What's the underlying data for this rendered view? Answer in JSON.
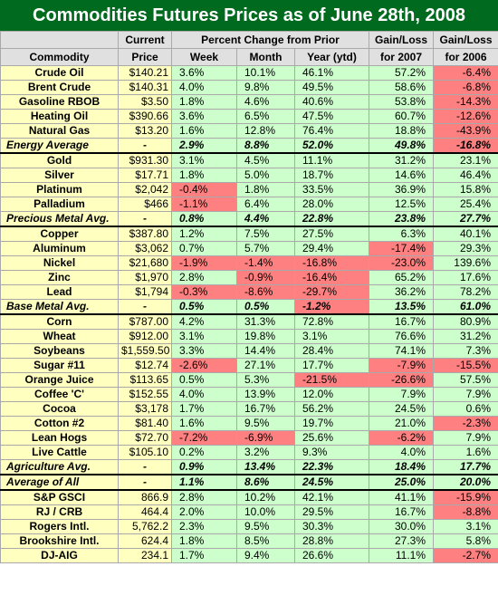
{
  "title": "Commodities Futures Prices as of June 28th, 2008",
  "colors": {
    "title_bg": "#006b1f",
    "name_bg": "#ffffc0",
    "positive_bg": "#ccffcc",
    "negative_bg": "#ff8080",
    "header_bg": "#e0e0e0"
  },
  "header": {
    "row1": [
      "",
      "Current",
      "Percent Change from Prior",
      "Gain/Loss",
      "Gain/Loss"
    ],
    "row2": [
      "Commodity",
      "Price",
      "Week",
      "Month",
      "Year (ytd)",
      "for 2007",
      "for 2006"
    ]
  },
  "chart_data": {
    "type": "table",
    "title": "Commodities Futures Prices as of June 28th, 2008",
    "columns": [
      "Commodity",
      "Current Price",
      "Week",
      "Month",
      "Year (ytd)",
      "Gain/Loss for 2007",
      "Gain/Loss for 2006"
    ],
    "rows": [
      {
        "name": "Crude Oil",
        "price": "$140.21",
        "values": [
          "3.6%",
          "10.1%",
          "46.1%",
          "57.2%",
          "-6.4%"
        ]
      },
      {
        "name": "Brent Crude",
        "price": "$140.31",
        "values": [
          "4.0%",
          "9.8%",
          "49.5%",
          "58.6%",
          "-6.8%"
        ]
      },
      {
        "name": "Gasoline RBOB",
        "price": "$3.50",
        "values": [
          "1.8%",
          "4.6%",
          "40.6%",
          "53.8%",
          "-14.3%"
        ]
      },
      {
        "name": "Heating Oil",
        "price": "$390.66",
        "values": [
          "3.6%",
          "6.5%",
          "47.5%",
          "60.7%",
          "-12.6%"
        ]
      },
      {
        "name": "Natural Gas",
        "price": "$13.20",
        "values": [
          "1.6%",
          "12.8%",
          "76.4%",
          "18.8%",
          "-43.9%"
        ]
      },
      {
        "name": "Energy Average",
        "price": "-",
        "values": [
          "2.9%",
          "8.8%",
          "52.0%",
          "49.8%",
          "-16.8%"
        ],
        "avg": true
      },
      {
        "name": "Gold",
        "price": "$931.30",
        "values": [
          "3.1%",
          "4.5%",
          "11.1%",
          "31.2%",
          "23.1%"
        ]
      },
      {
        "name": "Silver",
        "price": "$17.71",
        "values": [
          "1.8%",
          "5.0%",
          "18.7%",
          "14.6%",
          "46.4%"
        ]
      },
      {
        "name": "Platinum",
        "price": "$2,042",
        "values": [
          "-0.4%",
          "1.8%",
          "33.5%",
          "36.9%",
          "15.8%"
        ]
      },
      {
        "name": "Palladium",
        "price": "$466",
        "values": [
          "-1.1%",
          "6.4%",
          "28.0%",
          "12.5%",
          "25.4%"
        ]
      },
      {
        "name": "Precious Metal Avg.",
        "price": "-",
        "values": [
          "0.8%",
          "4.4%",
          "22.8%",
          "23.8%",
          "27.7%"
        ],
        "avg": true
      },
      {
        "name": "Copper",
        "price": "$387.80",
        "values": [
          "1.2%",
          "7.5%",
          "27.5%",
          "6.3%",
          "40.1%"
        ]
      },
      {
        "name": "Aluminum",
        "price": "$3,062",
        "values": [
          "0.7%",
          "5.7%",
          "29.4%",
          "-17.4%",
          "29.3%"
        ]
      },
      {
        "name": "Nickel",
        "price": "$21,680",
        "values": [
          "-1.9%",
          "-1.4%",
          "-16.8%",
          "-23.0%",
          "139.6%"
        ]
      },
      {
        "name": "Zinc",
        "price": "$1,970",
        "values": [
          "2.8%",
          "-0.9%",
          "-16.4%",
          "65.2%",
          "17.6%"
        ]
      },
      {
        "name": "Lead",
        "price": "$1,794",
        "values": [
          "-0.3%",
          "-8.6%",
          "-29.7%",
          "36.2%",
          "78.2%"
        ]
      },
      {
        "name": "Base Metal Avg.",
        "price": "-",
        "values": [
          "0.5%",
          "0.5%",
          "-1.2%",
          "13.5%",
          "61.0%"
        ],
        "avg": true
      },
      {
        "name": "Corn",
        "price": "$787.00",
        "values": [
          "4.2%",
          "31.3%",
          "72.8%",
          "16.7%",
          "80.9%"
        ]
      },
      {
        "name": "Wheat",
        "price": "$912.00",
        "values": [
          "3.1%",
          "19.8%",
          "3.1%",
          "76.6%",
          "31.2%"
        ]
      },
      {
        "name": "Soybeans",
        "price": "$1,559.50",
        "values": [
          "3.3%",
          "14.4%",
          "28.4%",
          "74.1%",
          "7.3%"
        ]
      },
      {
        "name": "Sugar #11",
        "price": "$12.74",
        "values": [
          "-2.6%",
          "27.1%",
          "17.7%",
          "-7.9%",
          "-15.5%"
        ]
      },
      {
        "name": "Orange Juice",
        "price": "$113.65",
        "values": [
          "0.5%",
          "5.3%",
          "-21.5%",
          "-26.6%",
          "57.5%"
        ]
      },
      {
        "name": "Coffee 'C'",
        "price": "$152.55",
        "values": [
          "4.0%",
          "13.9%",
          "12.0%",
          "7.9%",
          "7.9%"
        ]
      },
      {
        "name": "Cocoa",
        "price": "$3,178",
        "values": [
          "1.7%",
          "16.7%",
          "56.2%",
          "24.5%",
          "0.6%"
        ]
      },
      {
        "name": "Cotton #2",
        "price": "$81.40",
        "values": [
          "1.6%",
          "9.5%",
          "19.7%",
          "21.0%",
          "-2.3%"
        ]
      },
      {
        "name": "Lean Hogs",
        "price": "$72.70",
        "values": [
          "-7.2%",
          "-6.9%",
          "25.6%",
          "-6.2%",
          "7.9%"
        ]
      },
      {
        "name": "Live Cattle",
        "price": "$105.10",
        "values": [
          "0.2%",
          "3.2%",
          "9.3%",
          "4.0%",
          "1.6%"
        ]
      },
      {
        "name": "Agriculture Avg.",
        "price": "-",
        "values": [
          "0.9%",
          "13.4%",
          "22.3%",
          "18.4%",
          "17.7%"
        ],
        "avg": true
      },
      {
        "name": "Average of All",
        "price": "-",
        "values": [
          "1.1%",
          "8.6%",
          "24.5%",
          "25.0%",
          "20.0%"
        ],
        "avg": true
      },
      {
        "name": "S&P GSCI",
        "price": "866.9",
        "values": [
          "2.8%",
          "10.2%",
          "42.1%",
          "41.1%",
          "-15.9%"
        ]
      },
      {
        "name": "RJ / CRB",
        "price": "464.4",
        "values": [
          "2.0%",
          "10.0%",
          "29.5%",
          "16.7%",
          "-8.8%"
        ]
      },
      {
        "name": "Rogers Intl.",
        "price": "5,762.2",
        "values": [
          "2.3%",
          "9.5%",
          "30.3%",
          "30.0%",
          "3.1%"
        ]
      },
      {
        "name": "Brookshire Intl.",
        "price": "624.4",
        "values": [
          "1.8%",
          "8.5%",
          "28.8%",
          "27.3%",
          "5.8%"
        ]
      },
      {
        "name": "DJ-AIG",
        "price": "234.1",
        "values": [
          "1.7%",
          "9.4%",
          "26.6%",
          "11.1%",
          "-2.7%"
        ]
      }
    ]
  }
}
